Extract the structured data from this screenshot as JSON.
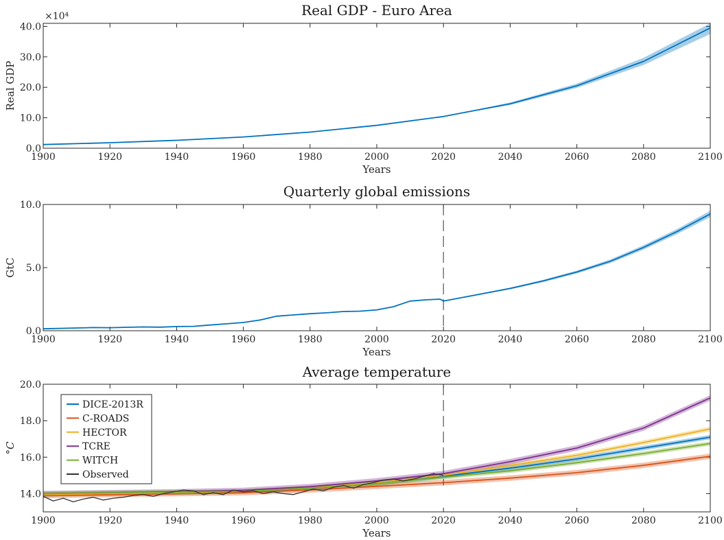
{
  "chart_data": [
    {
      "type": "line",
      "title": "Real GDP - Euro Area",
      "xlabel": "Years",
      "ylabel": "Real GDP",
      "y_multiplier": "×10⁴",
      "xlim": [
        1900,
        2100
      ],
      "ylim": [
        0,
        41
      ],
      "xticks": [
        1900,
        1920,
        1940,
        1960,
        1980,
        2000,
        2020,
        2040,
        2060,
        2080,
        2100
      ],
      "yticks": [
        0,
        10,
        20,
        30,
        40
      ],
      "ytick_labels": [
        "0.0",
        "10.0",
        "20.0",
        "30.0",
        "40.0"
      ],
      "series": [
        {
          "color": "#0072bd",
          "x": [
            1900,
            1920,
            1940,
            1960,
            1980,
            2000,
            2020,
            2040,
            2060,
            2080,
            2100
          ],
          "y": [
            1.2,
            1.8,
            2.6,
            3.7,
            5.3,
            7.5,
            10.4,
            14.6,
            20.5,
            28.5,
            39.5
          ],
          "band_lower": [
            1.2,
            1.8,
            2.6,
            3.7,
            5.3,
            7.5,
            10.4,
            14.2,
            19.8,
            27.3,
            37.5
          ],
          "band_upper": [
            1.2,
            1.8,
            2.6,
            3.7,
            5.3,
            7.5,
            10.4,
            15.0,
            21.2,
            29.7,
            41.0
          ]
        }
      ]
    },
    {
      "type": "line",
      "title": "Quarterly global emissions",
      "xlabel": "Years",
      "ylabel": "GtC",
      "xlim": [
        1900,
        2100
      ],
      "ylim": [
        0,
        10
      ],
      "xticks": [
        1900,
        1920,
        1940,
        1960,
        1980,
        2000,
        2020,
        2040,
        2060,
        2080,
        2100
      ],
      "yticks": [
        0,
        5,
        10
      ],
      "ytick_labels": [
        "0.0",
        "5.0",
        "10.0"
      ],
      "vline_x": 2020,
      "series": [
        {
          "color": "#0072bd",
          "x": [
            1900,
            1910,
            1915,
            1920,
            1925,
            1930,
            1935,
            1940,
            1945,
            1950,
            1955,
            1960,
            1965,
            1970,
            1975,
            1980,
            1985,
            1990,
            1995,
            2000,
            2005,
            2010,
            2015,
            2019,
            2020,
            2030,
            2040,
            2050,
            2060,
            2070,
            2080,
            2090,
            2100
          ],
          "y": [
            0.15,
            0.22,
            0.25,
            0.24,
            0.27,
            0.3,
            0.28,
            0.33,
            0.35,
            0.45,
            0.55,
            0.65,
            0.85,
            1.15,
            1.25,
            1.35,
            1.42,
            1.52,
            1.55,
            1.65,
            1.9,
            2.35,
            2.45,
            2.5,
            2.35,
            2.85,
            3.35,
            3.95,
            4.65,
            5.5,
            6.6,
            7.85,
            9.25
          ],
          "band_lower": [
            0.15,
            0.22,
            0.25,
            0.24,
            0.27,
            0.3,
            0.28,
            0.33,
            0.35,
            0.45,
            0.55,
            0.65,
            0.85,
            1.15,
            1.25,
            1.35,
            1.42,
            1.52,
            1.55,
            1.65,
            1.9,
            2.35,
            2.45,
            2.5,
            2.32,
            2.8,
            3.28,
            3.86,
            4.54,
            5.36,
            6.43,
            7.65,
            9.0
          ],
          "band_upper": [
            0.15,
            0.22,
            0.25,
            0.24,
            0.27,
            0.3,
            0.28,
            0.33,
            0.35,
            0.45,
            0.55,
            0.65,
            0.85,
            1.15,
            1.25,
            1.35,
            1.42,
            1.52,
            1.55,
            1.65,
            1.9,
            2.35,
            2.45,
            2.5,
            2.38,
            2.9,
            3.42,
            4.04,
            4.76,
            5.64,
            6.77,
            8.05,
            9.5
          ]
        }
      ]
    },
    {
      "type": "line",
      "title": "Average temperature",
      "xlabel": "Years",
      "ylabel": "°C",
      "xlim": [
        1900,
        2100
      ],
      "ylim": [
        13.0,
        20.0
      ],
      "xticks": [
        1900,
        1920,
        1940,
        1960,
        1980,
        2000,
        2020,
        2040,
        2060,
        2080,
        2100
      ],
      "yticks": [
        14,
        16,
        18,
        20
      ],
      "ytick_labels": [
        "14.0",
        "16.0",
        "18.0",
        "20.0"
      ],
      "vline_x": 2020,
      "legend_position": "top-left",
      "series": [
        {
          "name": "DICE-2013R",
          "color": "#0072bd",
          "x": [
            1900,
            1920,
            1940,
            1960,
            1980,
            2000,
            2020,
            2040,
            2060,
            2080,
            2100
          ],
          "y": [
            13.95,
            14.0,
            14.05,
            14.12,
            14.3,
            14.55,
            14.95,
            15.4,
            15.9,
            16.5,
            17.1
          ],
          "band": 0.12
        },
        {
          "name": "C-ROADS",
          "color": "#d95319",
          "x": [
            1900,
            1920,
            1940,
            1960,
            1980,
            2000,
            2020,
            2040,
            2060,
            2080,
            2100
          ],
          "y": [
            13.9,
            13.95,
            14.0,
            14.05,
            14.2,
            14.4,
            14.6,
            14.85,
            15.15,
            15.55,
            16.05
          ],
          "band": 0.15
        },
        {
          "name": "HECTOR",
          "color": "#edb120",
          "x": [
            1900,
            1920,
            1940,
            1960,
            1980,
            2000,
            2020,
            2040,
            2060,
            2080,
            2100
          ],
          "y": [
            13.95,
            14.0,
            14.05,
            14.12,
            14.32,
            14.6,
            15.0,
            15.55,
            16.1,
            16.8,
            17.55
          ],
          "band": 0.12
        },
        {
          "name": "TCRE",
          "color": "#7e2f8e",
          "x": [
            1900,
            1920,
            1940,
            1960,
            1980,
            2000,
            2020,
            2040,
            2060,
            2080,
            2100
          ],
          "y": [
            14.0,
            14.05,
            14.1,
            14.18,
            14.38,
            14.7,
            15.1,
            15.75,
            16.5,
            17.6,
            19.25
          ],
          "band": 0.15
        },
        {
          "name": "WITCH",
          "color": "#77ac30",
          "x": [
            1900,
            1920,
            1940,
            1960,
            1980,
            2000,
            2020,
            2040,
            2060,
            2080,
            2100
          ],
          "y": [
            14.0,
            14.05,
            14.08,
            14.12,
            14.3,
            14.55,
            14.9,
            15.25,
            15.7,
            16.2,
            16.75
          ],
          "band": 0.12
        },
        {
          "name": "Observed",
          "color": "#333333",
          "x": [
            1900,
            1903,
            1906,
            1909,
            1912,
            1915,
            1918,
            1921,
            1924,
            1927,
            1930,
            1933,
            1936,
            1939,
            1942,
            1945,
            1948,
            1951,
            1954,
            1957,
            1960,
            1963,
            1966,
            1969,
            1972,
            1975,
            1978,
            1981,
            1984,
            1987,
            1990,
            1993,
            1996,
            1999,
            2002,
            2005,
            2008,
            2011,
            2014,
            2017,
            2020
          ],
          "y": [
            13.85,
            13.6,
            13.75,
            13.55,
            13.7,
            13.8,
            13.65,
            13.75,
            13.8,
            13.9,
            13.95,
            13.85,
            14.0,
            14.1,
            14.2,
            14.15,
            13.95,
            14.05,
            13.95,
            14.2,
            14.1,
            14.15,
            14.0,
            14.1,
            14.0,
            13.95,
            14.1,
            14.25,
            14.15,
            14.35,
            14.45,
            14.3,
            14.5,
            14.6,
            14.75,
            14.8,
            14.7,
            14.8,
            14.95,
            15.1,
            15.0
          ]
        }
      ]
    }
  ]
}
